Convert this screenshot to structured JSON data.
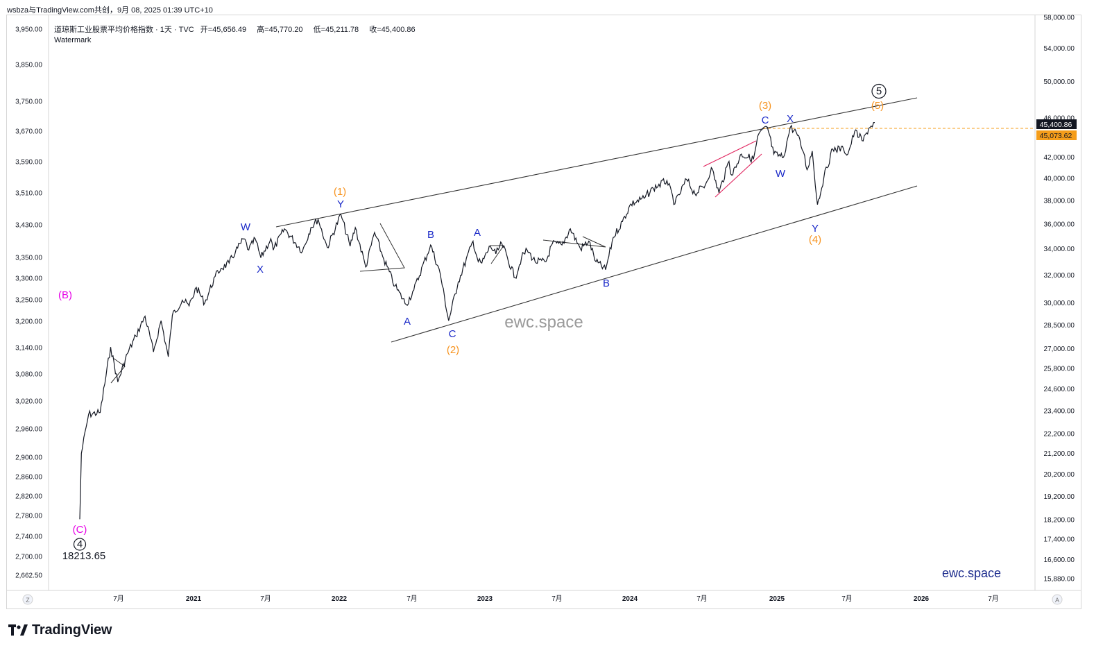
{
  "top_label": "wsbza与TradingView.com共创，9月 08, 2025 01:39 UTC+10",
  "legend": {
    "title": "道琼斯工业股票平均价格指数 · 1天 · TVC",
    "open_label": "开",
    "open": "45,656.49",
    "high_label": "高",
    "high": "45,770.20",
    "low_label": "低",
    "low": "45,211.78",
    "close_label": "收",
    "close": "45,400.86",
    "watermark": "Watermark"
  },
  "footer": {
    "brand": "TradingView",
    "logo_icon": "tradingview-logo-icon"
  },
  "chart_data": {
    "type": "line",
    "title": "道琼斯工业股票平均价格指数 · 1天 · TVC",
    "scale": "log",
    "left_axis": {
      "ticks": [
        "3,950.00",
        "3,850.00",
        "3,750.00",
        "3,670.00",
        "3,590.00",
        "3,510.00",
        "3,430.00",
        "3,350.00",
        "3,300.00",
        "3,250.00",
        "3,200.00",
        "3,140.00",
        "3,080.00",
        "3,020.00",
        "2,960.00",
        "2,900.00",
        "2,860.00",
        "2,820.00",
        "2,780.00",
        "2,740.00",
        "2,700.00",
        "2,662.50"
      ]
    },
    "right_axis": {
      "ticks": [
        "58,000.00",
        "54,000.00",
        "50,000.00",
        "46,000.00",
        "42,000.00",
        "40,000.00",
        "38,000.00",
        "36,000.00",
        "34,000.00",
        "32,000.00",
        "30,000.00",
        "28,500.00",
        "27,000.00",
        "25,800.00",
        "24,600.00",
        "23,400.00",
        "22,200.00",
        "21,200.00",
        "20,200.00",
        "19,200.00",
        "18,200.00",
        "17,400.00",
        "16,600.00",
        "15,880.00"
      ],
      "last_price": "45,400.86",
      "ref_price": "45,073.62",
      "colors": {
        "last_price_bg": "#131722",
        "ref_price_bg": "#f59d1a"
      }
    },
    "x_axis": {
      "ticks": [
        "7月",
        "2021",
        "7月",
        "2022",
        "7月",
        "2023",
        "7月",
        "2024",
        "7月",
        "2025",
        "7月",
        "2026",
        "7月"
      ],
      "left_button": "Z",
      "right_button": "A"
    },
    "series": [
      {
        "x": [
          "2020-03-23",
          "2020-03-27",
          "2020-04-14",
          "2020-05-13",
          "2020-06-08",
          "2020-06-26",
          "2020-07-20",
          "2020-08-10",
          "2020-09-02",
          "2020-09-23",
          "2020-10-12",
          "2020-10-30",
          "2020-11-09",
          "2020-12-04",
          "2020-12-21",
          "2021-01-08",
          "2021-01-29",
          "2021-02-24",
          "2021-03-11",
          "2021-03-31",
          "2021-04-16",
          "2021-05-07",
          "2021-05-19",
          "2021-06-04",
          "2021-06-18",
          "2021-07-13",
          "2021-07-19",
          "2021-08-16",
          "2021-09-30",
          "2021-10-21",
          "2021-11-08",
          "2021-12-01",
          "2022-01-04",
          "2022-01-27",
          "2022-02-09",
          "2022-03-07",
          "2022-03-29",
          "2022-04-21",
          "2022-05-19",
          "2022-06-16",
          "2022-07-05",
          "2022-08-16",
          "2022-09-09",
          "2022-09-30",
          "2022-10-24",
          "2022-11-30",
          "2022-12-13",
          "2022-12-22",
          "2023-01-12",
          "2023-01-26",
          "2023-02-10",
          "2023-03-15",
          "2023-03-31",
          "2023-04-14",
          "2023-05-04",
          "2023-05-31",
          "2023-06-16",
          "2023-07-10",
          "2023-07-31",
          "2023-08-25",
          "2023-09-15",
          "2023-10-03",
          "2023-10-27",
          "2023-11-15",
          "2023-12-08",
          "2023-12-29",
          "2024-01-31",
          "2024-02-23",
          "2024-03-28",
          "2024-04-17",
          "2024-05-16",
          "2024-06-06",
          "2024-07-02",
          "2024-07-17",
          "2024-08-05",
          "2024-08-30",
          "2024-09-06",
          "2024-09-30",
          "2024-10-30",
          "2024-11-12",
          "2024-12-04",
          "2024-12-20",
          "2025-01-13",
          "2025-01-30",
          "2025-02-14",
          "2025-03-04",
          "2025-03-13",
          "2025-03-26",
          "2025-04-08",
          "2025-04-24",
          "2025-05-16",
          "2025-06-12",
          "2025-06-23",
          "2025-07-10",
          "2025-07-31",
          "2025-08-14",
          "2025-08-29"
        ],
        "y": [
          18213.65,
          21200,
          23200,
          23300,
          27100,
          25000,
          26700,
          27800,
          29100,
          26800,
          28800,
          26500,
          29150,
          30200,
          29800,
          31100,
          30000,
          31900,
          32500,
          32900,
          33800,
          34800,
          33900,
          34800,
          33300,
          34800,
          33900,
          35600,
          33800,
          35700,
          36400,
          34100,
          36800,
          34200,
          35700,
          32600,
          35300,
          33200,
          31200,
          29900,
          30900,
          34300,
          32100,
          28800,
          31500,
          34600,
          33000,
          32900,
          34200,
          33600,
          34400,
          31800,
          33300,
          33900,
          33000,
          33000,
          34400,
          34300,
          35600,
          34000,
          34600,
          33000,
          32400,
          34900,
          36200,
          37700,
          38200,
          39100,
          39800,
          37700,
          39900,
          38600,
          39400,
          41000,
          38700,
          41600,
          40300,
          42300,
          41800,
          44300,
          45000,
          42300,
          42000,
          45000,
          44500,
          42500,
          40800,
          42600,
          37650,
          40100,
          42800,
          42800,
          42300,
          44600,
          43600,
          44900,
          45500
        ]
      }
    ],
    "wave_labels": [
      "(B)",
      "(C)",
      "4",
      "18213.65",
      "W",
      "X",
      "Y",
      "(1)",
      "A",
      "B",
      "C",
      "(2)",
      "A",
      "B",
      "(3)",
      "C",
      "X",
      "W",
      "Y",
      "(4)",
      "(5)",
      "5"
    ],
    "watermark_text": "ewc.space",
    "brand_text": "ewc.space",
    "colors": {
      "price": "#131722",
      "orange": "#f7931e",
      "magenta": "#e600e6",
      "blue": "#1a29c8",
      "pink_channel": "#e0245e"
    }
  }
}
